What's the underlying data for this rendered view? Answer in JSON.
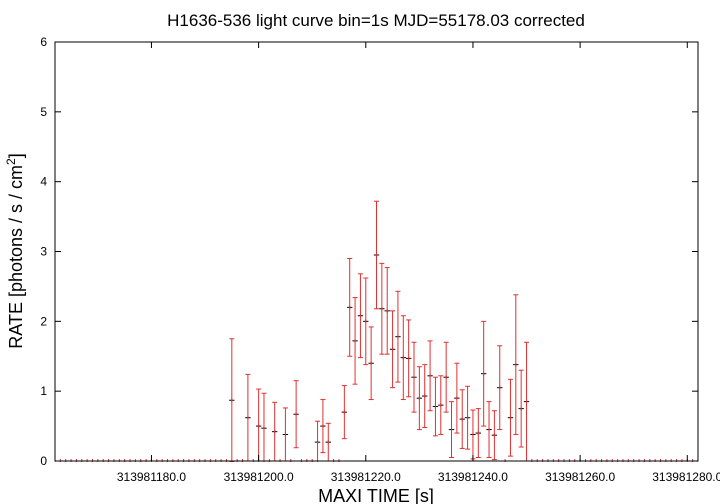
{
  "chart_data": {
    "type": "errorbar-step",
    "title": "H1636-536 light curve bin=1s MJD=55178.03 corrected",
    "xlabel": "MAXI TIME [s]",
    "ylabel": "RATE [photons / s / cm",
    "ylabel_sup": "2",
    "ylabel_end": "]",
    "color": "#e03030",
    "xlim": [
      313981162,
      313981282
    ],
    "xticks": [
      {
        "value": 313981180,
        "label": "313981180.0"
      },
      {
        "value": 313981200,
        "label": "313981200.0"
      },
      {
        "value": 313981220,
        "label": "313981220.0"
      },
      {
        "value": 313981240,
        "label": "313981240.0"
      },
      {
        "value": 313981260,
        "label": "313981260.0"
      },
      {
        "value": 313981280,
        "label": "313981280.0"
      }
    ],
    "ylim": [
      0,
      6
    ],
    "yticks": [
      0,
      1,
      2,
      3,
      4,
      5,
      6
    ],
    "x": [
      313981162,
      313981163,
      313981164,
      313981165,
      313981166,
      313981167,
      313981168,
      313981169,
      313981170,
      313981171,
      313981172,
      313981173,
      313981174,
      313981175,
      313981176,
      313981177,
      313981178,
      313981179,
      313981180,
      313981181,
      313981182,
      313981183,
      313981184,
      313981185,
      313981186,
      313981187,
      313981188,
      313981189,
      313981190,
      313981191,
      313981192,
      313981193,
      313981194,
      313981195,
      313981196,
      313981197,
      313981198,
      313981199,
      313981200,
      313981201,
      313981202,
      313981203,
      313981204,
      313981205,
      313981206,
      313981207,
      313981208,
      313981209,
      313981210,
      313981211,
      313981212,
      313981213,
      313981214,
      313981215,
      313981216,
      313981217,
      313981218,
      313981219,
      313981220,
      313981221,
      313981222,
      313981223,
      313981224,
      313981225,
      313981226,
      313981227,
      313981228,
      313981229,
      313981230,
      313981231,
      313981232,
      313981233,
      313981234,
      313981235,
      313981236,
      313981237,
      313981238,
      313981239,
      313981240,
      313981241,
      313981242,
      313981243,
      313981244,
      313981245,
      313981246,
      313981247,
      313981248,
      313981249,
      313981250,
      313981251,
      313981252,
      313981253,
      313981254,
      313981255,
      313981256,
      313981257,
      313981258,
      313981259,
      313981260,
      313981261,
      313981262,
      313981263,
      313981264,
      313981265,
      313981266,
      313981267,
      313981268,
      313981269,
      313981270,
      313981271,
      313981272,
      313981273,
      313981274,
      313981275,
      313981276,
      313981277,
      313981278,
      313981279,
      313981280,
      313981281,
      313981282
    ],
    "values": [
      0,
      0,
      0,
      0,
      0,
      0,
      0,
      0,
      0,
      0,
      0,
      0,
      0,
      0,
      0,
      0,
      0,
      0,
      0,
      0,
      0,
      0,
      0,
      0,
      0,
      0,
      0,
      0,
      0,
      0,
      0,
      0,
      0,
      0.87,
      0,
      0,
      0.62,
      0,
      0.5,
      0.47,
      0,
      0.42,
      0,
      0.38,
      0,
      0.67,
      0,
      0,
      0,
      0.27,
      0.5,
      0.27,
      0,
      0,
      0.7,
      2.2,
      1.72,
      2.08,
      2.0,
      1.4,
      2.95,
      2.18,
      2.15,
      1.6,
      1.78,
      1.48,
      1.47,
      1.2,
      0.9,
      0.93,
      1.22,
      0.78,
      0.8,
      1.2,
      0.45,
      0.9,
      0.6,
      0.62,
      0.38,
      0.4,
      1.25,
      0.45,
      0.37,
      1.05,
      0,
      0.62,
      1.38,
      0.75,
      0.85,
      0,
      0,
      0,
      0,
      0,
      0,
      0,
      0,
      0,
      0,
      0,
      0,
      0,
      0,
      0,
      0,
      0,
      0,
      0,
      0,
      0,
      0,
      0,
      0,
      0,
      0,
      0,
      0,
      0,
      0,
      0,
      0
    ],
    "errors": [
      0,
      0,
      0,
      0,
      0,
      0,
      0,
      0,
      0,
      0,
      0,
      0,
      0,
      0,
      0,
      0,
      0,
      0,
      0,
      0,
      0,
      0,
      0,
      0,
      0,
      0,
      0,
      0,
      0,
      0,
      0,
      0,
      0,
      0.88,
      0,
      0,
      0.62,
      0,
      0.53,
      0.5,
      0,
      0.42,
      0,
      0.38,
      0,
      0.48,
      0,
      0,
      0,
      0.3,
      0.38,
      0.27,
      0,
      0,
      0.38,
      0.7,
      0.62,
      0.6,
      0.62,
      0.52,
      0.77,
      0.65,
      0.62,
      0.55,
      0.65,
      0.6,
      0.55,
      0.5,
      0.45,
      0.45,
      0.5,
      0.42,
      0.42,
      0.5,
      0.4,
      0.5,
      0.42,
      0.45,
      0.35,
      0.35,
      0.75,
      0.4,
      0.35,
      0.6,
      0,
      0.55,
      1.0,
      0.55,
      0.85,
      0,
      0,
      0,
      0,
      0,
      0,
      0,
      0,
      0,
      0,
      0,
      0,
      0,
      0,
      0,
      0,
      0,
      0,
      0,
      0,
      0,
      0,
      0,
      0,
      0,
      0,
      0,
      0,
      0,
      0,
      0,
      0
    ]
  }
}
